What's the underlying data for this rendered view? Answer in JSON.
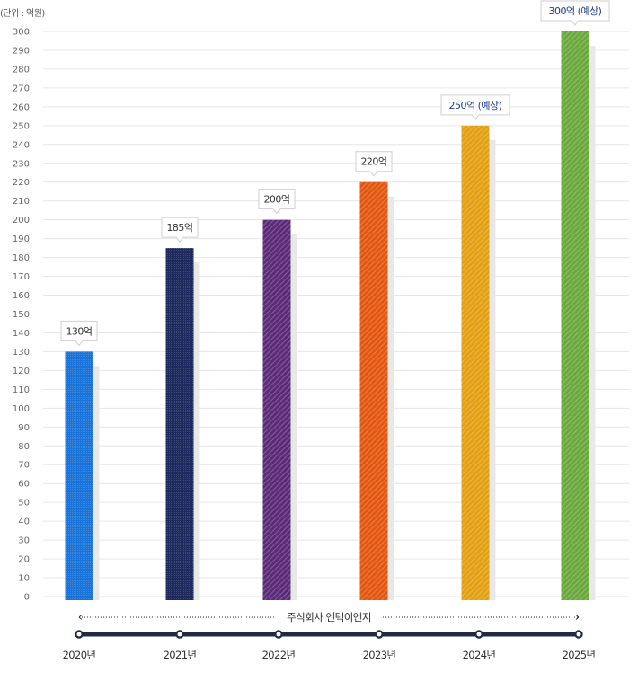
{
  "chart_data": {
    "type": "bar",
    "unit_label": "(단위 : 억원)",
    "categories": [
      "2020년",
      "2021년",
      "2022년",
      "2023년",
      "2024년",
      "2025년"
    ],
    "values": [
      130,
      185,
      200,
      220,
      250,
      300
    ],
    "data_labels": [
      "130억",
      "185억",
      "200억",
      "220억",
      "250억 (예상)",
      "300억 (예상)"
    ],
    "colors": [
      "#1a73d9",
      "#1e2a5e",
      "#5a2a78",
      "#e2560e",
      "#e3a011",
      "#6aa83c"
    ],
    "estimated": [
      false,
      false,
      false,
      false,
      true,
      true
    ],
    "ylim": [
      0,
      300
    ],
    "yticks": [
      0,
      10,
      20,
      30,
      40,
      50,
      60,
      70,
      80,
      90,
      100,
      110,
      120,
      130,
      140,
      150,
      160,
      170,
      180,
      190,
      200,
      210,
      220,
      230,
      240,
      250,
      260,
      270,
      280,
      290,
      300
    ],
    "grid": true,
    "timeline_label": "주식회사  엔텍이엔지"
  }
}
